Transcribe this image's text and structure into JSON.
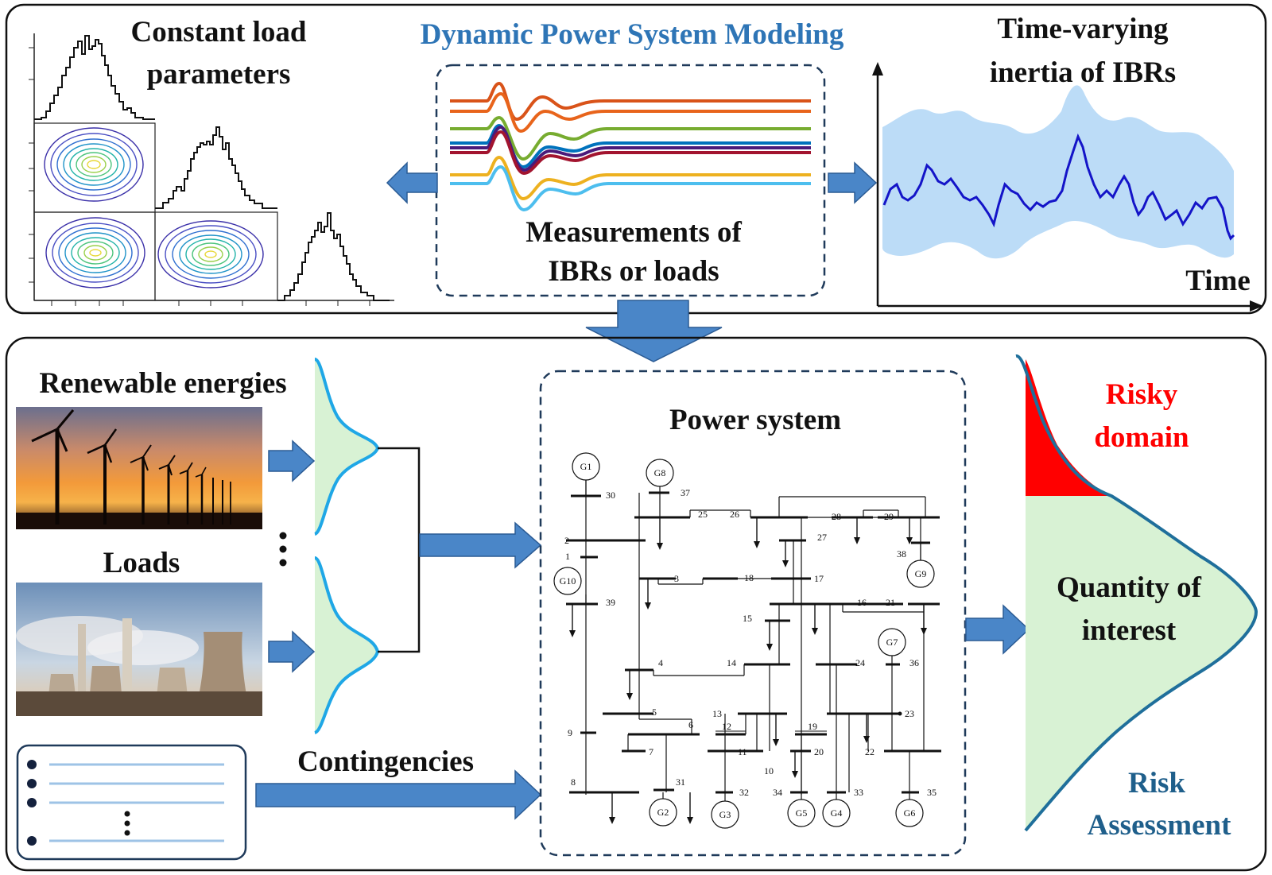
{
  "top": {
    "title": "Dynamic Power System Modeling",
    "constant_load_line1": "Constant load",
    "constant_load_line2": "parameters",
    "measurements_line1": "Measurements of",
    "measurements_line2": "IBRs or loads",
    "inertia_line1": "Time-varying",
    "inertia_line2": "inertia of IBRs",
    "time_label": "Time"
  },
  "bottom": {
    "renewable_label": "Renewable energies",
    "loads_label": "Loads",
    "contingencies_label": "Contingencies",
    "power_system_label": "Power system",
    "risky_line1": "Risky",
    "risky_line2": "domain",
    "qoi_line1": "Quantity of",
    "qoi_line2": "interest",
    "risk_line1": "Risk",
    "risk_line2": "Assessment"
  },
  "colors": {
    "title_blue": "#2e75b6",
    "arrow_blue": "#4a86c8",
    "risky_red": "#ff0000",
    "risk_blue": "#1f5f8b",
    "qoi_fill": "#d8f2d4",
    "band_fill": "#bcdcf7",
    "inertia_line": "#1414c8"
  },
  "measurement_series_colors": [
    "#d95319",
    "#e8641b",
    "#77ac30",
    "#0072bd",
    "#4a1a7a",
    "#a2142f",
    "#edb120",
    "#4dbeee"
  ],
  "power_system": {
    "generators": [
      "G1",
      "G2",
      "G3",
      "G4",
      "G5",
      "G6",
      "G7",
      "G8",
      "G9",
      "G10"
    ],
    "bus_numbers": [
      "1",
      "2",
      "3",
      "4",
      "5",
      "6",
      "7",
      "8",
      "9",
      "10",
      "11",
      "12",
      "13",
      "14",
      "15",
      "16",
      "17",
      "18",
      "19",
      "20",
      "21",
      "22",
      "23",
      "24",
      "25",
      "26",
      "27",
      "28",
      "29",
      "30",
      "31",
      "32",
      "33",
      "34",
      "35",
      "36",
      "37",
      "38",
      "39"
    ]
  }
}
